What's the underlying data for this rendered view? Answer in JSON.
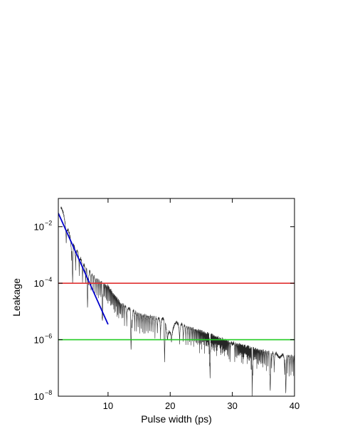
{
  "chart_data": {
    "type": "line",
    "title": "",
    "xlabel": "Pulse width (ps)",
    "ylabel": "Leakage",
    "xlim": [
      2,
      40
    ],
    "ylim": [
      1e-08,
      0.1
    ],
    "yscale": "log",
    "grid": false,
    "x_ticks": [
      {
        "value": 10,
        "label": "10"
      },
      {
        "value": 20,
        "label": "20"
      },
      {
        "value": 30,
        "label": "30"
      },
      {
        "value": 40,
        "label": "40"
      }
    ],
    "y_ticks": [
      {
        "value": 1e-08,
        "base": "10",
        "exp": "−8"
      },
      {
        "value": 1e-06,
        "base": "10",
        "exp": "−6"
      },
      {
        "value": 0.0001,
        "base": "10",
        "exp": "−4"
      },
      {
        "value": 0.01,
        "base": "10",
        "exp": "−2"
      }
    ],
    "series": [
      {
        "kind": "oscillating-leakage",
        "color": "#000000",
        "envelope": [
          [
            2.4,
            0.06
          ],
          [
            4,
            0.004
          ],
          [
            6,
            0.0005
          ],
          [
            8,
            0.00015
          ],
          [
            10,
            8e-05
          ],
          [
            12,
            2e-05
          ],
          [
            15,
            8e-06
          ],
          [
            20,
            5e-06
          ],
          [
            25,
            2e-06
          ],
          [
            30,
            8e-07
          ],
          [
            35,
            4e-07
          ],
          [
            40,
            2.5e-07
          ]
        ],
        "deep_minima_x": [
          4.3,
          6.7,
          9.1,
          13.7,
          19.1,
          26.4,
          33.2,
          36.1,
          38.6
        ]
      },
      {
        "kind": "fit-line",
        "color": "#0000cc",
        "x": [
          2,
          10
        ],
        "y": [
          0.03,
          3.5e-06
        ]
      },
      {
        "kind": "threshold",
        "color": "#e03030",
        "x": [
          2,
          40
        ],
        "y": [
          0.0001,
          0.0001
        ]
      },
      {
        "kind": "threshold",
        "color": "#22cc22",
        "x": [
          2,
          40
        ],
        "y": [
          1e-06,
          1e-06
        ]
      }
    ]
  }
}
